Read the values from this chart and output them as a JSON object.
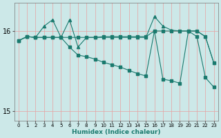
{
  "xlabel": "Humidex (Indice chaleur)",
  "bg_color": "#cce8e8",
  "line_color": "#1a7a6e",
  "x_values": [
    0,
    1,
    2,
    3,
    4,
    5,
    6,
    7,
    8,
    9,
    10,
    11,
    12,
    13,
    14,
    15,
    16,
    17,
    18,
    19,
    20,
    21,
    22,
    23
  ],
  "series_flat": [
    15.88,
    15.93,
    15.92,
    15.92,
    15.92,
    15.92,
    15.92,
    15.92,
    15.92,
    15.92,
    15.93,
    15.93,
    15.93,
    15.93,
    15.93,
    15.93,
    16.0,
    16.0,
    16.0,
    16.0,
    16.0,
    16.0,
    15.93,
    15.6
  ],
  "series_jagged": [
    15.88,
    15.93,
    15.92,
    16.06,
    16.14,
    15.92,
    16.14,
    15.8,
    15.92,
    15.92,
    15.92,
    15.92,
    15.92,
    15.92,
    15.92,
    15.92,
    16.18,
    16.06,
    16.01,
    16.0,
    16.0,
    16.0,
    15.93,
    15.6
  ],
  "series_diag": [
    15.88,
    15.93,
    15.92,
    15.92,
    15.92,
    15.92,
    15.8,
    15.7,
    15.68,
    15.65,
    15.61,
    15.58,
    15.55,
    15.51,
    15.47,
    15.44,
    16.0,
    15.4,
    15.38,
    15.35,
    16.0,
    15.93,
    15.42,
    15.3
  ],
  "ylim": [
    14.88,
    16.35
  ],
  "yticks": [
    15.0,
    16.0
  ],
  "xlim": [
    -0.5,
    23.5
  ]
}
